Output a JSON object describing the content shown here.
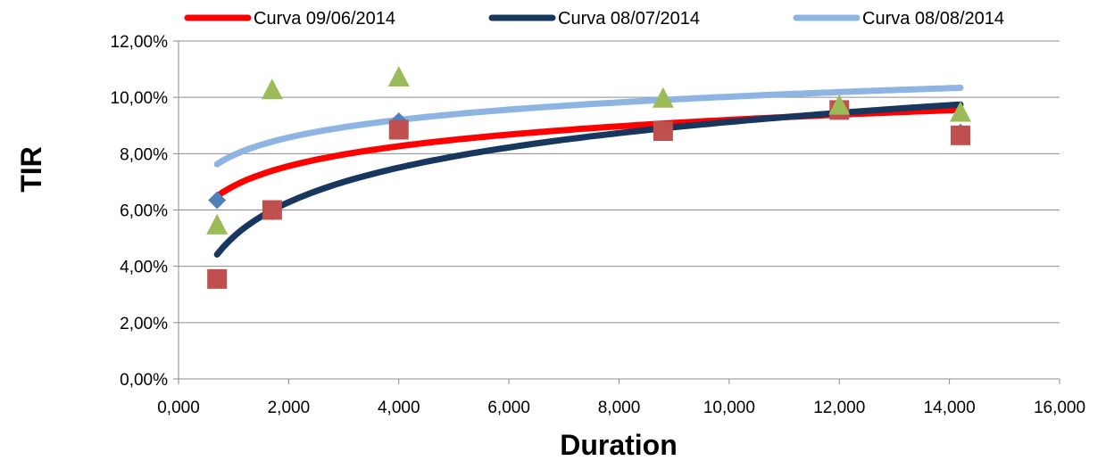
{
  "chart_data": {
    "type": "scatter",
    "title": "",
    "xlabel": "Duration",
    "ylabel": "TIR",
    "xlim": [
      0,
      16
    ],
    "ylim": [
      0,
      0.12
    ],
    "x_ticks": [
      0,
      2,
      4,
      6,
      8,
      10,
      12,
      14,
      16
    ],
    "x_tick_labels": [
      "0,000",
      "2,000",
      "4,000",
      "6,000",
      "8,000",
      "10,000",
      "12,000",
      "14,000",
      "16,000"
    ],
    "y_ticks": [
      0,
      0.02,
      0.04,
      0.06,
      0.08,
      0.1,
      0.12
    ],
    "y_tick_labels": [
      "0,00%",
      "2,00%",
      "4,00%",
      "6,00%",
      "8,00%",
      "10,00%",
      "12,00%"
    ],
    "grid": "horizontal",
    "legend_position": "top",
    "curves": [
      {
        "name": "Curva 09/06/2014",
        "color": "#ff0000",
        "a": 0.0685,
        "b": 0.0102,
        "x_range": [
          0.7,
          14.2
        ]
      },
      {
        "name": "Curva 08/07/2014",
        "color": "#17375e",
        "a": 0.0505,
        "b": 0.0177,
        "x_range": [
          0.7,
          14.2
        ]
      },
      {
        "name": "Curva 08/08/2014",
        "color": "#8eb4e3",
        "a": 0.0795,
        "b": 0.009,
        "x_range": [
          0.7,
          14.2
        ]
      }
    ],
    "series": [
      {
        "marker": "diamond",
        "color": "#4f81bd",
        "points": [
          [
            0.7,
            0.0635
          ],
          [
            1.7,
            0.0595
          ],
          [
            4.0,
            0.0915
          ],
          [
            8.8,
            0.0885
          ],
          [
            14.2,
            0.0875
          ]
        ]
      },
      {
        "marker": "square",
        "color": "#c0504d",
        "points": [
          [
            0.7,
            0.0355
          ],
          [
            1.7,
            0.06
          ],
          [
            4.0,
            0.0885
          ],
          [
            8.8,
            0.088
          ],
          [
            12.0,
            0.0955
          ],
          [
            14.2,
            0.0865
          ]
        ]
      },
      {
        "marker": "triangle",
        "color": "#9bbb59",
        "points": [
          [
            0.7,
            0.0545
          ],
          [
            1.7,
            0.1025
          ],
          [
            4.0,
            0.107
          ],
          [
            8.8,
            0.0995
          ],
          [
            12.0,
            0.097
          ],
          [
            14.2,
            0.0945
          ]
        ]
      }
    ]
  }
}
